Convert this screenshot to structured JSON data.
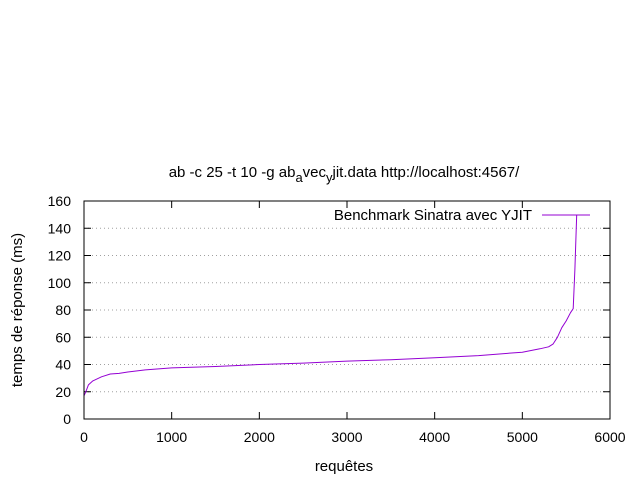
{
  "chart_data": {
    "type": "line",
    "title_parts": {
      "pre": "ab -c 25 -t 10 -g ab",
      "sub1": "a",
      "mid": "vec",
      "sub2": "y",
      "post": "jit.data http://localhost:4567/"
    },
    "xlabel": "requêtes",
    "ylabel": "temps de réponse (ms)",
    "xlim": [
      0,
      6000
    ],
    "ylim": [
      0,
      160
    ],
    "xticks": [
      "0",
      "1000",
      "2000",
      "3000",
      "4000",
      "5000",
      "6000"
    ],
    "yticks": [
      "0",
      "20",
      "40",
      "60",
      "80",
      "100",
      "120",
      "140",
      "160"
    ],
    "grid": "horizontal dotted",
    "legend_position": "top-right",
    "series": [
      {
        "name": "Benchmark Sinatra avec YJIT",
        "color": "#9400d3",
        "points": [
          [
            0,
            17
          ],
          [
            20,
            20
          ],
          [
            50,
            25
          ],
          [
            100,
            28
          ],
          [
            200,
            31
          ],
          [
            300,
            33
          ],
          [
            400,
            33.5
          ],
          [
            500,
            34.5
          ],
          [
            700,
            36
          ],
          [
            1000,
            37.5
          ],
          [
            1500,
            38.5
          ],
          [
            2000,
            40
          ],
          [
            2500,
            41
          ],
          [
            3000,
            42.5
          ],
          [
            3500,
            43.5
          ],
          [
            4000,
            45
          ],
          [
            4500,
            46.5
          ],
          [
            5000,
            49
          ],
          [
            5200,
            51.5
          ],
          [
            5300,
            53
          ],
          [
            5350,
            55
          ],
          [
            5400,
            60
          ],
          [
            5450,
            67
          ],
          [
            5500,
            72
          ],
          [
            5550,
            78
          ],
          [
            5580,
            81
          ],
          [
            5600,
            110
          ],
          [
            5620,
            150
          ]
        ]
      }
    ]
  }
}
